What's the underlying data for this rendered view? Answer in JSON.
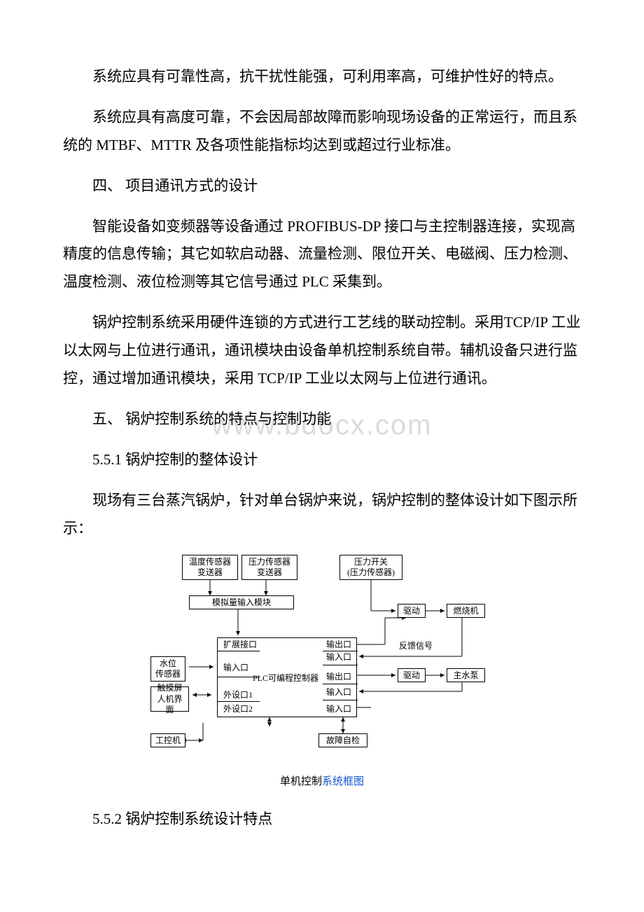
{
  "paragraphs": {
    "p1": "系统应具有可靠性高，抗干扰性能强，可利用率高，可维护性好的特点。",
    "p2": "系统应具有高度可靠，不会因局部故障而影响现场设备的正常运行，而且系统的 MTBF、MTTR 及各项性能指标均达到或超过行业标准。",
    "h4": "四、 项目通讯方式的设计",
    "p3": "智能设备如变频器等设备通过 PROFIBUS-DP 接口与主控制器连接，实现高精度的信息传输；其它如软启动器、流量检测、限位开关、电磁阀、压力检测、温度检测、液位检测等其它信号通过 PLC 采集到。",
    "p4": "锅炉控制系统采用硬件连锁的方式进行工艺线的联动控制。采用TCP/IP 工业以太网与上位进行通讯，通讯模块由设备单机控制系统自带。辅机设备只进行监控，通过增加通讯模块，采用 TCP/IP 工业以太网与上位进行通讯。",
    "h5": "五、 锅炉控制系统的特点与控制功能",
    "s551": "5.5.1 锅炉控制的整体设计",
    "p5": "现场有三台蒸汽锅炉，针对单台锅炉来说，锅炉控制的整体设计如下图示所示：",
    "s552": "5.5.2 锅炉控制系统设计特点"
  },
  "watermark": "www.bdocx.com",
  "diagram": {
    "caption_prefix": "单机控制",
    "caption_suffix": "系统框图",
    "boxes": {
      "temp_sensor": "温度传感器\n变送器",
      "press_sensor": "压力传感器\n变送器",
      "press_switch": "压力开关\n(压力传感器)",
      "analog_in": "模拟量输入模块",
      "drive1": "驱动",
      "burner": "燃烧机",
      "water_sensor": "水位\n传感器",
      "hmi": "触摸屏\n人机界面",
      "ipc": "工控机",
      "drive2": "驱动",
      "main_pump": "主水泵",
      "self_check": "故障自检"
    },
    "labels": {
      "ext_port": "扩展接口",
      "in1": "输入口",
      "periph1": "外设口1",
      "periph2": "外设口2",
      "plc": "PLC可编程控制器",
      "out1": "输出口",
      "in2": "输入口",
      "out2": "输出口",
      "in3": "输入口",
      "in4": "输入口",
      "feedback": "反馈信号"
    }
  },
  "colors": {
    "text": "#000000",
    "bg": "#ffffff",
    "watermark": "#dadada",
    "caption_blue": "#1155cc"
  }
}
